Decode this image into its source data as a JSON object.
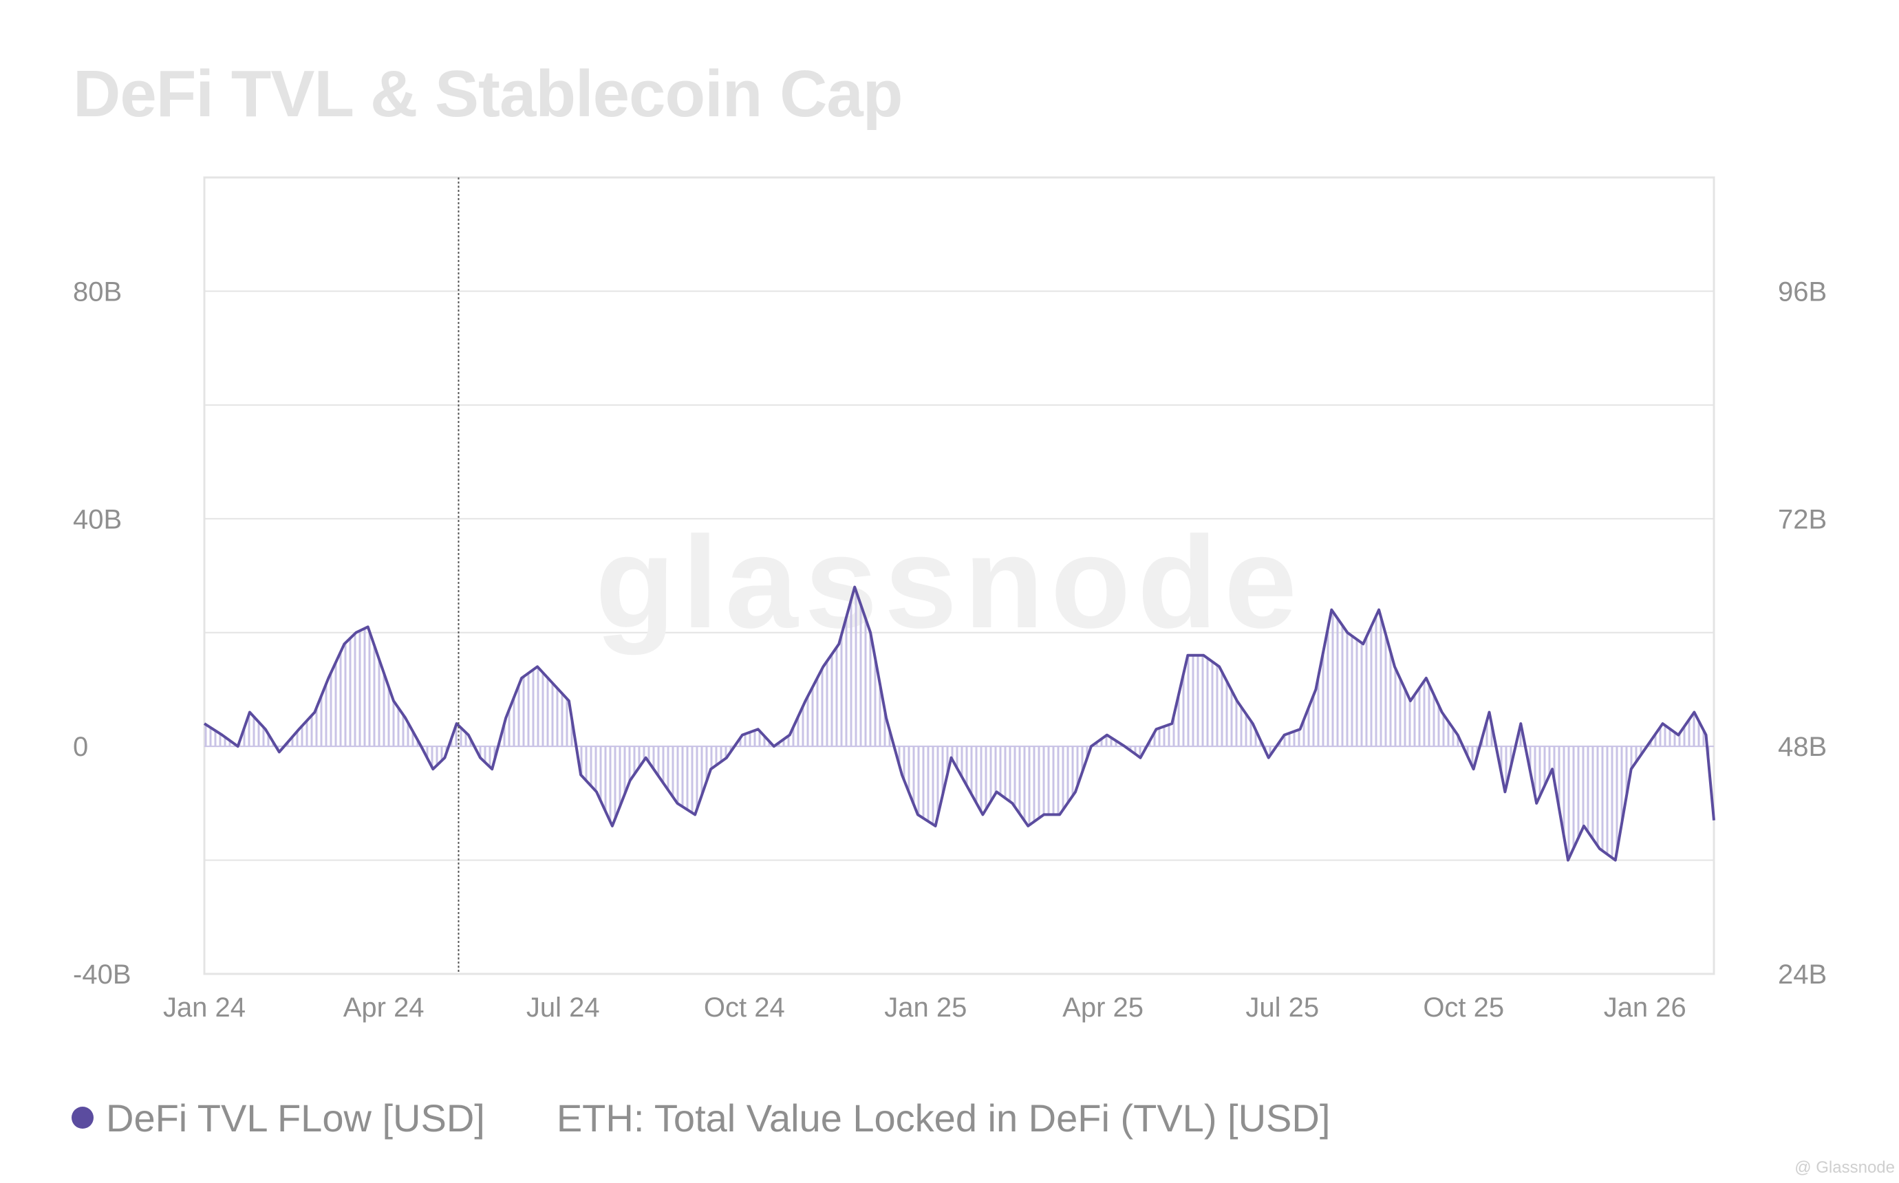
{
  "title": "DeFi TVL & Stablecoin Cap",
  "legend": [
    {
      "label": "DeFi TVL FLow [USD]",
      "color": "#5b4c9f"
    },
    {
      "label": "ETH: Total Value Locked in DeFi (TVL) [USD]"
    }
  ],
  "watermark": "glassnode",
  "credit": "@ Glassnode",
  "colors": {
    "series": "#5b4c9f",
    "fill": "#c9c3e6",
    "grid": "#e4e4e4",
    "tick": "#8f8f8f"
  },
  "chart_data": {
    "type": "area",
    "x_ticks": [
      "Jan 24",
      "Apr 24",
      "Jul 24",
      "Oct 24",
      "Jan 25",
      "Apr 25",
      "Jul 25",
      "Oct 25",
      "Jan 26"
    ],
    "y_left_ticks": [
      "80B",
      "40B",
      "0",
      "-40B"
    ],
    "y_right_ticks": [
      "96B",
      "72B",
      "48B",
      "24B"
    ],
    "ylim_left": [
      -40,
      100
    ],
    "ylim_right": [
      24,
      108
    ],
    "x_range": [
      "2024-01-01",
      "2026-02-05"
    ],
    "marker_date": "2024-05-09",
    "grid": true,
    "legend_position": "bottom-left",
    "series": [
      {
        "name": "DeFi TVL FLow [USD]",
        "unit": "B",
        "points": [
          [
            "2024-01-01",
            4
          ],
          [
            "2024-01-10",
            2
          ],
          [
            "2024-01-18",
            0
          ],
          [
            "2024-01-24",
            6
          ],
          [
            "2024-02-01",
            3
          ],
          [
            "2024-02-08",
            -1
          ],
          [
            "2024-02-18",
            3
          ],
          [
            "2024-02-26",
            6
          ],
          [
            "2024-03-04",
            12
          ],
          [
            "2024-03-12",
            18
          ],
          [
            "2024-03-18",
            20
          ],
          [
            "2024-03-24",
            21
          ],
          [
            "2024-03-30",
            15
          ],
          [
            "2024-04-06",
            8
          ],
          [
            "2024-04-12",
            5
          ],
          [
            "2024-04-20",
            0
          ],
          [
            "2024-04-26",
            -4
          ],
          [
            "2024-05-02",
            -2
          ],
          [
            "2024-05-08",
            4
          ],
          [
            "2024-05-14",
            2
          ],
          [
            "2024-05-20",
            -2
          ],
          [
            "2024-05-26",
            -4
          ],
          [
            "2024-06-02",
            5
          ],
          [
            "2024-06-10",
            12
          ],
          [
            "2024-06-18",
            14
          ],
          [
            "2024-06-26",
            11
          ],
          [
            "2024-07-04",
            8
          ],
          [
            "2024-07-10",
            -5
          ],
          [
            "2024-07-18",
            -8
          ],
          [
            "2024-07-26",
            -14
          ],
          [
            "2024-08-04",
            -6
          ],
          [
            "2024-08-12",
            -2
          ],
          [
            "2024-08-20",
            -6
          ],
          [
            "2024-08-28",
            -10
          ],
          [
            "2024-09-06",
            -12
          ],
          [
            "2024-09-14",
            -4
          ],
          [
            "2024-09-22",
            -2
          ],
          [
            "2024-09-30",
            2
          ],
          [
            "2024-10-08",
            3
          ],
          [
            "2024-10-16",
            0
          ],
          [
            "2024-10-24",
            2
          ],
          [
            "2024-11-01",
            8
          ],
          [
            "2024-11-10",
            14
          ],
          [
            "2024-11-18",
            18
          ],
          [
            "2024-11-26",
            28
          ],
          [
            "2024-12-04",
            20
          ],
          [
            "2024-12-12",
            5
          ],
          [
            "2024-12-20",
            -5
          ],
          [
            "2024-12-28",
            -12
          ],
          [
            "2025-01-06",
            -14
          ],
          [
            "2025-01-14",
            -2
          ],
          [
            "2025-01-22",
            -7
          ],
          [
            "2025-01-30",
            -12
          ],
          [
            "2025-02-06",
            -8
          ],
          [
            "2025-02-14",
            -10
          ],
          [
            "2025-02-22",
            -14
          ],
          [
            "2025-03-02",
            -12
          ],
          [
            "2025-03-10",
            -12
          ],
          [
            "2025-03-18",
            -8
          ],
          [
            "2025-03-26",
            0
          ],
          [
            "2025-04-03",
            2
          ],
          [
            "2025-04-12",
            0
          ],
          [
            "2025-04-20",
            -2
          ],
          [
            "2025-04-28",
            3
          ],
          [
            "2025-05-06",
            4
          ],
          [
            "2025-05-14",
            16
          ],
          [
            "2025-05-22",
            16
          ],
          [
            "2025-05-30",
            14
          ],
          [
            "2025-06-08",
            8
          ],
          [
            "2025-06-16",
            4
          ],
          [
            "2025-06-24",
            -2
          ],
          [
            "2025-07-02",
            2
          ],
          [
            "2025-07-10",
            3
          ],
          [
            "2025-07-18",
            10
          ],
          [
            "2025-07-26",
            24
          ],
          [
            "2025-08-03",
            20
          ],
          [
            "2025-08-11",
            18
          ],
          [
            "2025-08-19",
            24
          ],
          [
            "2025-08-27",
            14
          ],
          [
            "2025-09-04",
            8
          ],
          [
            "2025-09-12",
            12
          ],
          [
            "2025-09-20",
            6
          ],
          [
            "2025-09-28",
            2
          ],
          [
            "2025-10-06",
            -4
          ],
          [
            "2025-10-14",
            6
          ],
          [
            "2025-10-22",
            -8
          ],
          [
            "2025-10-30",
            4
          ],
          [
            "2025-11-07",
            -10
          ],
          [
            "2025-11-15",
            -4
          ],
          [
            "2025-11-23",
            -20
          ],
          [
            "2025-12-01",
            -14
          ],
          [
            "2025-12-09",
            -18
          ],
          [
            "2025-12-17",
            -20
          ],
          [
            "2025-12-25",
            -4
          ],
          [
            "2026-01-02",
            0
          ],
          [
            "2026-01-10",
            4
          ],
          [
            "2026-01-18",
            2
          ],
          [
            "2026-01-26",
            6
          ],
          [
            "2026-02-01",
            2
          ],
          [
            "2026-02-05",
            -13
          ]
        ]
      }
    ]
  }
}
